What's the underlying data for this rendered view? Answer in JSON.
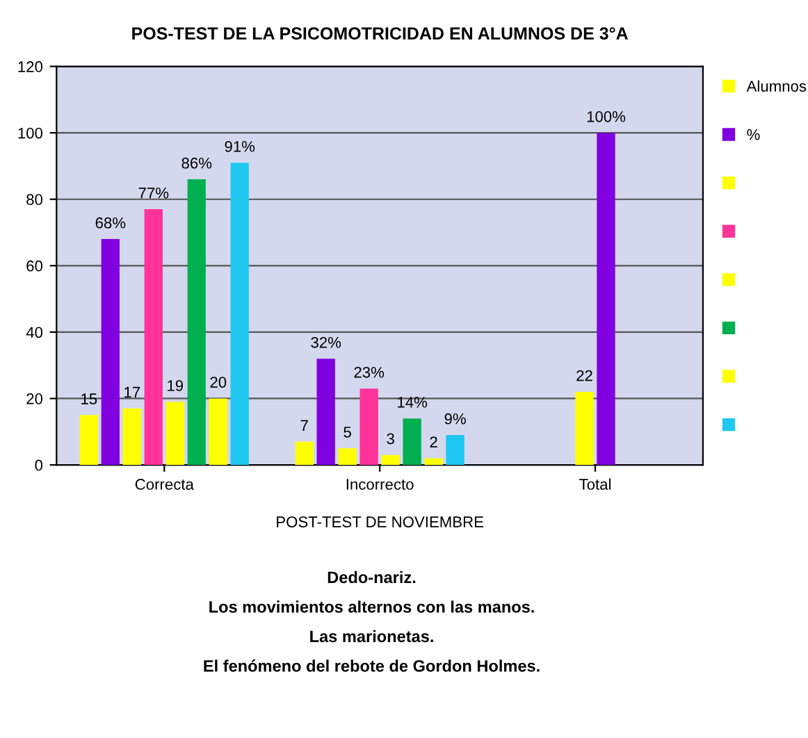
{
  "chart_data": {
    "type": "bar",
    "title": "POS-TEST DE LA PSICOMOTRICIDAD EN ALUMNOS DE 3°A",
    "categories": [
      "Correcta",
      "Incorrecto",
      "Total"
    ],
    "xlabel": "POST-TEST DE NOVIEMBRE",
    "series": [
      {
        "name": "Alumnos",
        "color": "#ffff00",
        "values": [
          15,
          7,
          22
        ],
        "value_labels": [
          "15",
          "7",
          "22"
        ]
      },
      {
        "name": "%",
        "color": "#8000e0",
        "values": [
          68,
          32,
          100
        ],
        "value_labels": [
          "68%",
          "32%",
          "100%"
        ]
      },
      {
        "color": "#ffff00",
        "values": [
          17,
          5,
          null
        ],
        "value_labels": [
          "17",
          "5",
          null
        ]
      },
      {
        "color": "#ff3399",
        "values": [
          77,
          23,
          null
        ],
        "value_labels": [
          "77%",
          "23%",
          null
        ]
      },
      {
        "color": "#ffff00",
        "values": [
          19,
          3,
          null
        ],
        "value_labels": [
          "19",
          "3",
          null
        ]
      },
      {
        "color": "#00b050",
        "values": [
          86,
          14,
          null
        ],
        "value_labels": [
          "86%",
          "14%",
          null
        ]
      },
      {
        "color": "#ffff00",
        "values": [
          20,
          2,
          null
        ],
        "value_labels": [
          "20",
          "2",
          null
        ]
      },
      {
        "color": "#1ec8f0",
        "values": [
          91,
          9,
          null
        ],
        "value_labels": [
          "91%",
          "9%",
          null
        ]
      }
    ],
    "ylim": [
      0,
      120
    ],
    "yticks": [
      0,
      20,
      40,
      60,
      80,
      100,
      120
    ],
    "grid": "y",
    "legend": "right",
    "annotations": [
      "Dedo-nariz.",
      "Los movimientos alternos con las manos.",
      "Las marionetas.",
      "El fenómeno del rebote de Gordon Holmes."
    ]
  }
}
